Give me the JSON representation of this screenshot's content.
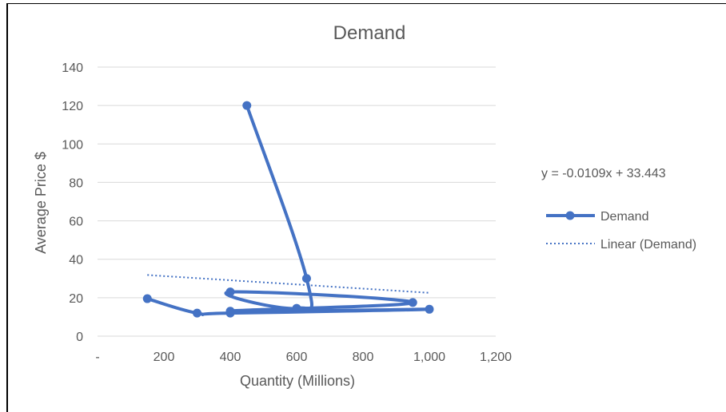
{
  "chart_data": {
    "type": "scatter",
    "title": "Demand",
    "xlabel": "Quantity (Millions)",
    "ylabel": "Average Price $",
    "xlim": [
      0,
      1200
    ],
    "ylim": [
      0,
      140
    ],
    "x_ticks": [
      0,
      200,
      400,
      600,
      800,
      1000,
      1200
    ],
    "x_tick_labels": [
      "-",
      "200",
      "400",
      "600",
      "800",
      "1,000",
      "1,200"
    ],
    "y_ticks": [
      0,
      20,
      40,
      60,
      80,
      100,
      120,
      140
    ],
    "y_tick_labels": [
      "0",
      "20",
      "40",
      "60",
      "80",
      "100",
      "120",
      "140"
    ],
    "grid": true,
    "legend_position": "right",
    "series": [
      {
        "name": "Demand",
        "style": "smooth line with markers",
        "color": "#4472C4",
        "points": [
          {
            "x": 150,
            "y": 19.5
          },
          {
            "x": 300,
            "y": 12
          },
          {
            "x": 400,
            "y": 12
          },
          {
            "x": 1000,
            "y": 14
          },
          {
            "x": 400,
            "y": 13
          },
          {
            "x": 950,
            "y": 17.5
          },
          {
            "x": 400,
            "y": 23
          },
          {
            "x": 600,
            "y": 14.5
          },
          {
            "x": 630,
            "y": 30
          },
          {
            "x": 450,
            "y": 120
          }
        ]
      }
    ],
    "trendline": {
      "name": "Linear (Demand)",
      "style": "dotted",
      "color": "#4472C4",
      "slope": -0.0109,
      "intercept": 33.443,
      "x_range": [
        150,
        1000
      ],
      "equation_label": "y = -0.0109x + 33.443"
    }
  }
}
